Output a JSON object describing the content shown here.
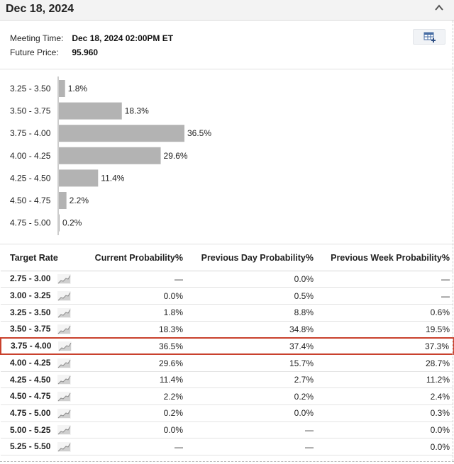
{
  "header": {
    "title": "Dec 18, 2024"
  },
  "meeting": {
    "time_label": "Meeting Time:",
    "time_value": "Dec 18, 2024 02:00PM ET",
    "price_label": "Future Price:",
    "price_value": "95.960"
  },
  "chart_data": {
    "type": "bar",
    "orientation": "horizontal",
    "categories": [
      "3.25 - 3.50",
      "3.50 - 3.75",
      "3.75 - 4.00",
      "4.00 - 4.25",
      "4.25 - 4.50",
      "4.50 - 4.75",
      "4.75 - 5.00"
    ],
    "values": [
      1.8,
      18.3,
      36.5,
      29.6,
      11.4,
      2.2,
      0.2
    ],
    "value_labels": [
      "1.8%",
      "18.3%",
      "36.5%",
      "29.6%",
      "11.4%",
      "2.2%",
      "0.2%"
    ],
    "xlim": [
      0,
      36.5
    ],
    "bar_color": "#b3b3b3",
    "grid": false
  },
  "table": {
    "headers": [
      "Target Rate",
      "Current Probability%",
      "Previous Day Probability%",
      "Previous Week Probability%"
    ],
    "highlight_color": "#c9412d",
    "rows": [
      {
        "rate": "2.75 - 3.00",
        "current": "—",
        "prev_day": "0.0%",
        "prev_week": "—"
      },
      {
        "rate": "3.00 - 3.25",
        "current": "0.0%",
        "prev_day": "0.5%",
        "prev_week": "—"
      },
      {
        "rate": "3.25 - 3.50",
        "current": "1.8%",
        "prev_day": "8.8%",
        "prev_week": "0.6%"
      },
      {
        "rate": "3.50 - 3.75",
        "current": "18.3%",
        "prev_day": "34.8%",
        "prev_week": "19.5%"
      },
      {
        "rate": "3.75 - 4.00",
        "current": "36.5%",
        "prev_day": "37.4%",
        "prev_week": "37.3%",
        "highlighted": true
      },
      {
        "rate": "4.00 - 4.25",
        "current": "29.6%",
        "prev_day": "15.7%",
        "prev_week": "28.7%"
      },
      {
        "rate": "4.25 - 4.50",
        "current": "11.4%",
        "prev_day": "2.7%",
        "prev_week": "11.2%"
      },
      {
        "rate": "4.50 - 4.75",
        "current": "2.2%",
        "prev_day": "0.2%",
        "prev_week": "2.4%"
      },
      {
        "rate": "4.75 - 5.00",
        "current": "0.2%",
        "prev_day": "0.0%",
        "prev_week": "0.3%"
      },
      {
        "rate": "5.00 - 5.25",
        "current": "0.0%",
        "prev_day": "—",
        "prev_week": "0.0%"
      },
      {
        "rate": "5.25 - 5.50",
        "current": "—",
        "prev_day": "—",
        "prev_week": "0.0%"
      }
    ]
  },
  "icons": {
    "collapse": "chevron-up-icon",
    "tool": "table-add-icon",
    "spark": "sparkline-chart-icon"
  }
}
